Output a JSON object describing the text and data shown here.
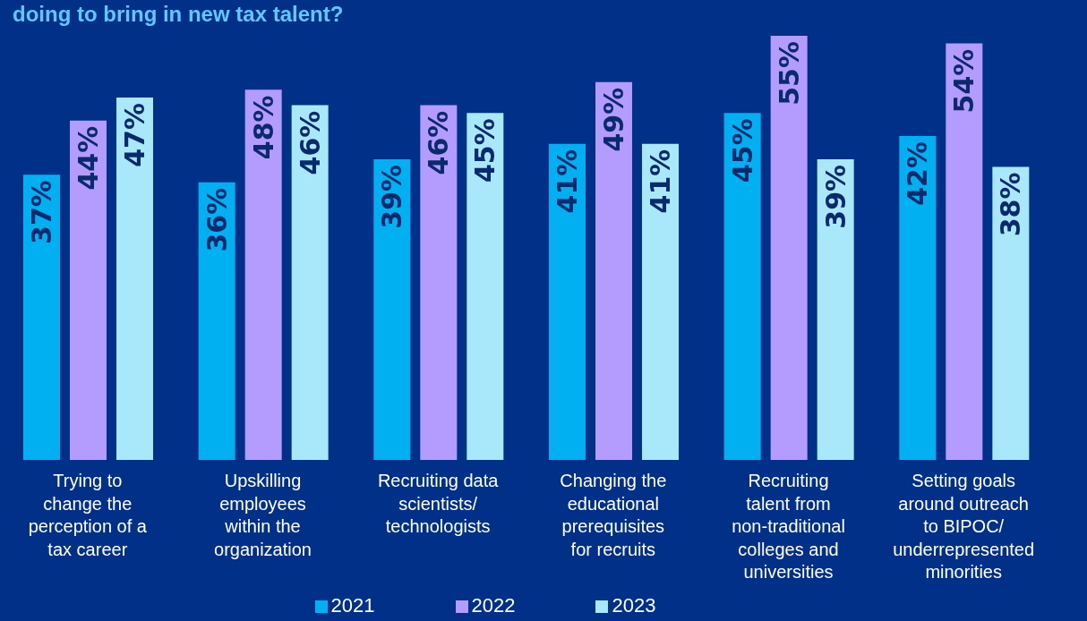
{
  "chart_data": {
    "type": "bar",
    "title": "doing to bring in new tax talent?",
    "categories": [
      "Trying to change the perception of a tax career",
      "Upskilling employees within the organization",
      "Recruiting data scientists/ technologists",
      "Changing the educational prerequisites for recruits",
      "Recruiting talent from non-traditional colleges and universities",
      "Setting goals around outreach to BIPOC/ underrepresented minorities"
    ],
    "series": [
      {
        "name": "2021",
        "color": "#00b0f0",
        "values": [
          37,
          36,
          39,
          41,
          45,
          42
        ],
        "value_labels": [
          "37%",
          "36%",
          "39%",
          "41%",
          "45%",
          "42%"
        ]
      },
      {
        "name": "2022",
        "color": "#b49cff",
        "values": [
          44,
          48,
          46,
          49,
          55,
          54
        ],
        "value_labels": [
          "44%",
          "48%",
          "46%",
          "49%",
          "55%",
          "54%"
        ]
      },
      {
        "name": "2023",
        "color": "#a9e8fb",
        "values": [
          47,
          46,
          45,
          41,
          39,
          38
        ],
        "value_labels": [
          "47%",
          "46%",
          "45%",
          "41%",
          "39%",
          "38%"
        ]
      }
    ],
    "grid": false,
    "legend": "bottom"
  }
}
